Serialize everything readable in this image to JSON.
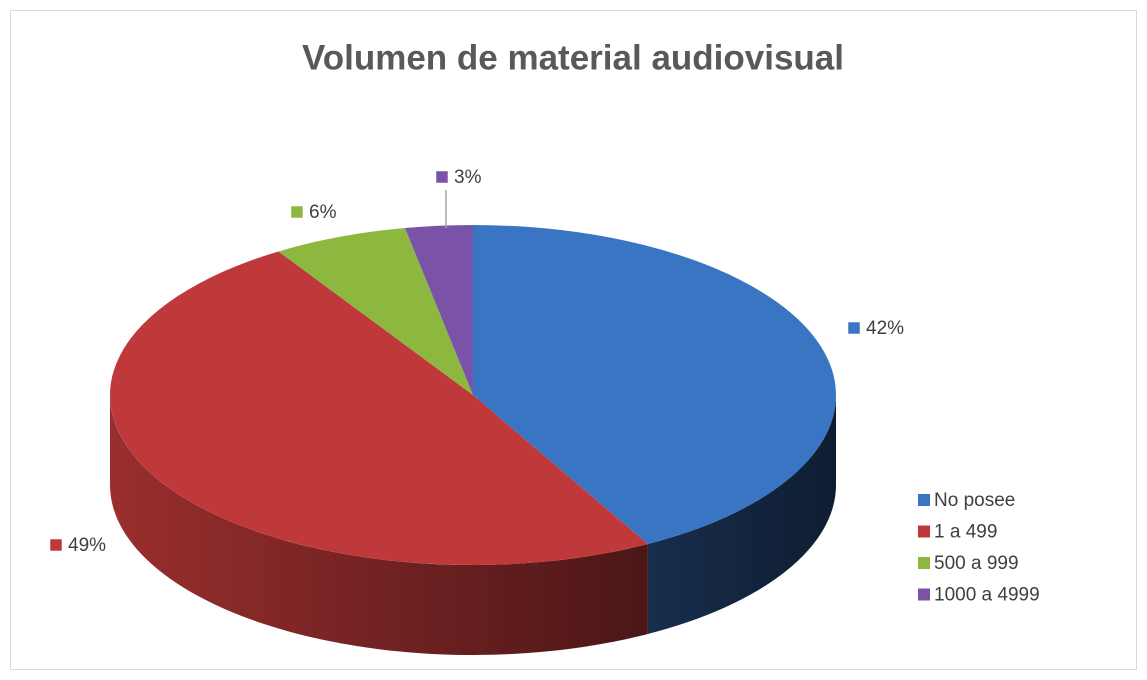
{
  "chart_data": {
    "type": "pie",
    "title": "Volumen de material audiovisual",
    "categories": [
      "No posee",
      "1 a 499",
      "500 a 999",
      "1000 a 4999"
    ],
    "values": [
      42,
      49,
      6,
      3
    ],
    "value_labels": [
      "42%",
      "49%",
      "6%",
      "3%"
    ],
    "colors": [
      "#3a75c4",
      "#c0393a",
      "#8db83f",
      "#7a52a8"
    ],
    "legend": "right"
  }
}
